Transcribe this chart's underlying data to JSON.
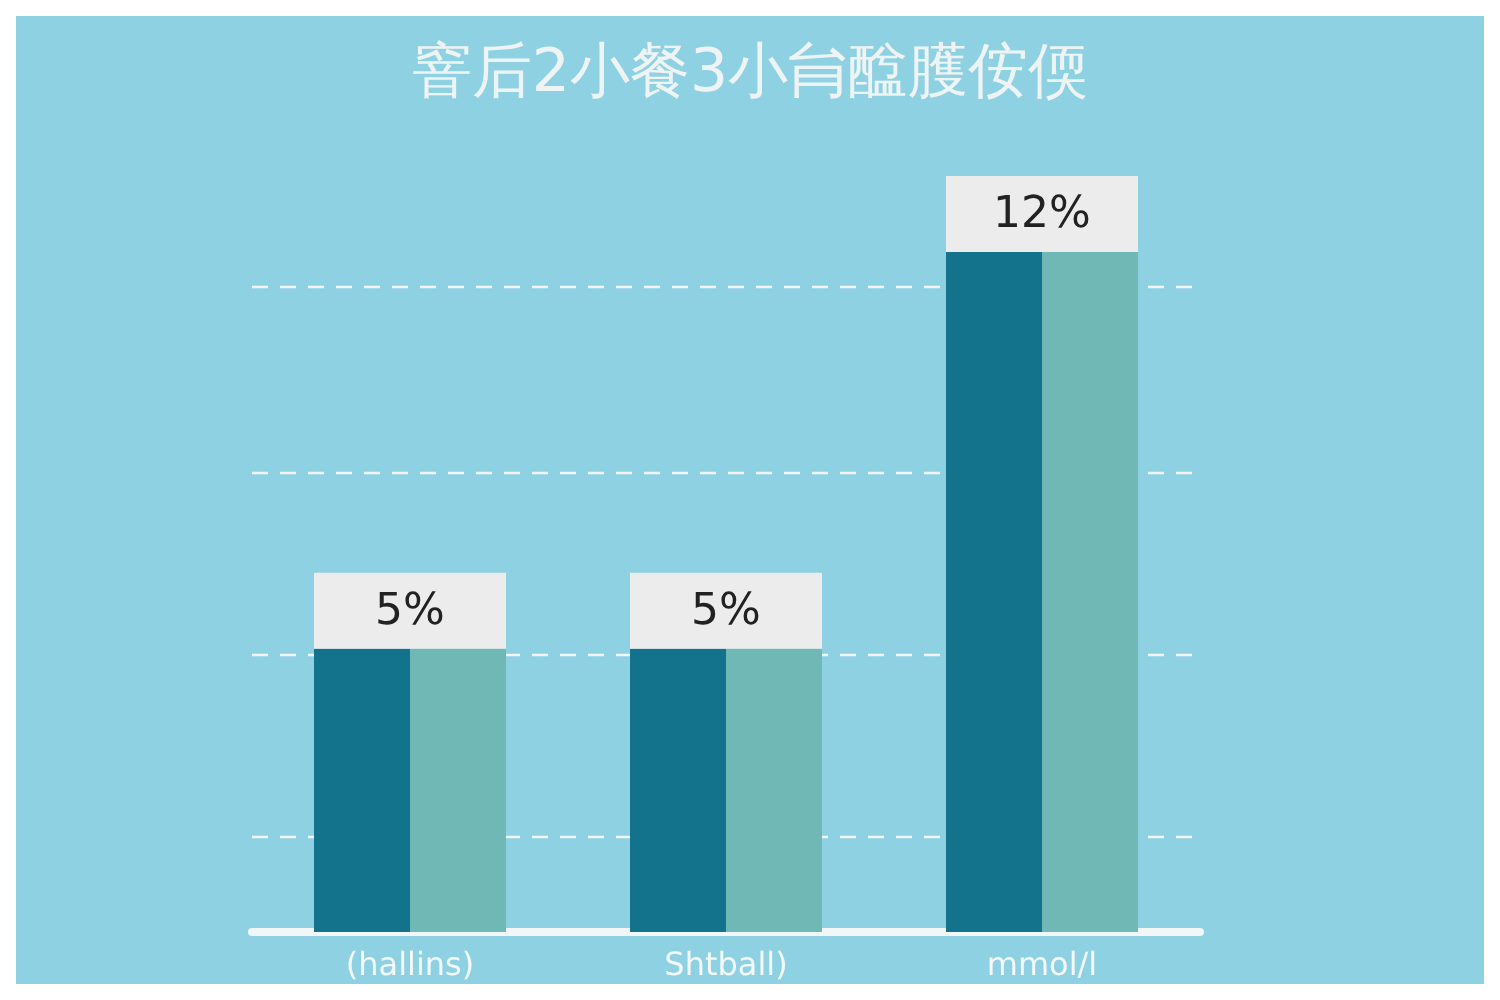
{
  "chart_data": {
    "type": "bar",
    "title": "窨后2小餐3小䏍䤈臒侒偄",
    "categories": [
      "(hallins)",
      "Shtball)",
      "mmol/l"
    ],
    "series": [
      {
        "color": "#13738c",
        "values": [
          5,
          5,
          12
        ],
        "value_labels": [
          "5%",
          "5%",
          "12%"
        ]
      },
      {
        "color": "#6fb8b5",
        "values": [
          5,
          5,
          12
        ]
      }
    ],
    "yticks": [
      {
        "value": 1.7,
        "label": null
      },
      {
        "value": 4.9,
        "label": null
      },
      {
        "value": 8.1,
        "label": null
      },
      {
        "value": 11.4,
        "label": null
      }
    ],
    "grid": "y",
    "tick_labels": "x"
  }
}
